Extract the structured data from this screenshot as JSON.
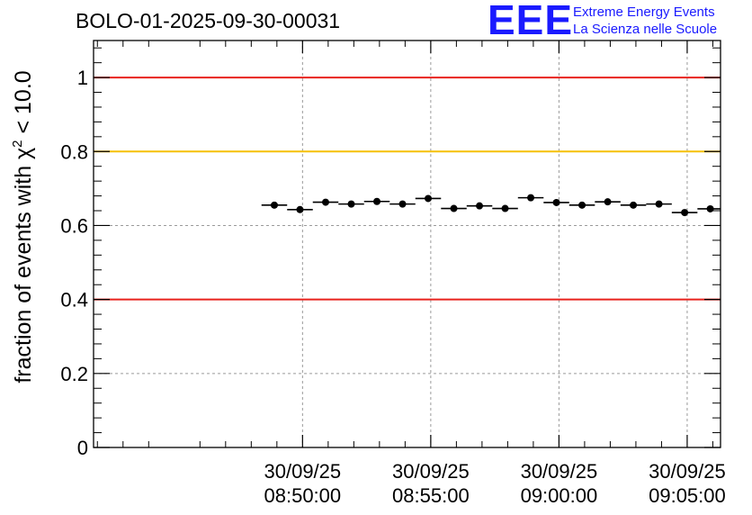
{
  "title": "BOLO-01-2025-09-30-00031",
  "logo": {
    "mark": "EEE",
    "line1": "Extreme Energy Events",
    "line2": "La Scienza nelle Scuole",
    "color": "#1a1aff"
  },
  "chart_data": {
    "type": "scatter",
    "title": "BOLO-01-2025-09-30-00031",
    "xlabel": "",
    "ylabel": "fraction of events with χ² < 10.0",
    "ylim": [
      0,
      1.1
    ],
    "xlim_minutes": [
      -8.15,
      16.3
    ],
    "grid": true,
    "yticks": [
      0,
      0.2,
      0.4,
      0.6,
      0.8,
      1
    ],
    "ytick_labels": [
      "0",
      "0.2",
      "0.4",
      "0.6",
      "0.8",
      "1"
    ],
    "xticks_minutes": [
      0,
      5,
      10,
      15
    ],
    "xtick_labels": [
      [
        "30/09/25",
        "08:50:00"
      ],
      [
        "30/09/25",
        "08:55:00"
      ],
      [
        "30/09/25",
        "09:00:00"
      ],
      [
        "30/09/25",
        "09:05:00"
      ]
    ],
    "reference_lines": [
      {
        "y": 1.0,
        "color": "#e8231e"
      },
      {
        "y": 0.8,
        "color": "#f5c000"
      },
      {
        "y": 0.4,
        "color": "#e8231e"
      }
    ],
    "bin_halfwidth_minutes": 0.5,
    "series": [
      {
        "name": "fraction",
        "x_minutes": [
          -1.1,
          -0.1,
          0.9,
          1.9,
          2.9,
          3.9,
          4.9,
          5.9,
          6.9,
          7.9,
          8.9,
          9.9,
          10.9,
          11.9,
          12.9,
          13.9,
          14.9,
          15.9
        ],
        "values": [
          0.655,
          0.643,
          0.663,
          0.658,
          0.665,
          0.658,
          0.673,
          0.646,
          0.653,
          0.646,
          0.675,
          0.662,
          0.655,
          0.664,
          0.655,
          0.658,
          0.635,
          0.645
        ]
      }
    ]
  }
}
